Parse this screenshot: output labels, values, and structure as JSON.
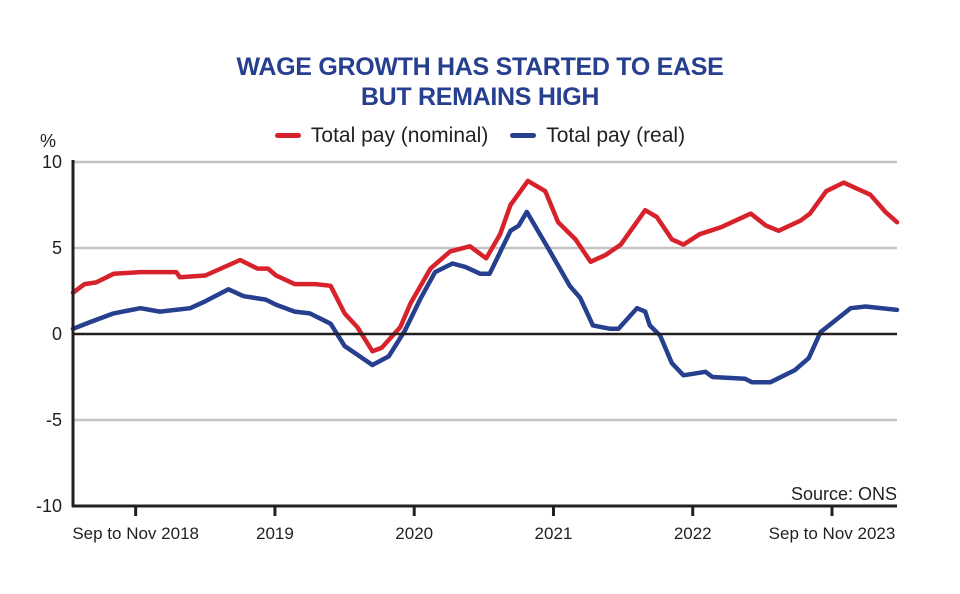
{
  "chart_data": {
    "type": "line",
    "title": "WAGE GROWTH HAS STARTED TO EASE",
    "subtitle": "BUT REMAINS HIGH",
    "ylabel": "%",
    "xlabel": "",
    "ylim": [
      -10,
      10
    ],
    "yticks": [
      10,
      5,
      0,
      -5,
      -10
    ],
    "ytick_labels": [
      "10",
      "5",
      "0",
      "-5",
      "-10"
    ],
    "x_unit": "months since start (Jun 2018 approx.)",
    "xlim": [
      0,
      71
    ],
    "xticks": [
      5.4,
      17.4,
      29.4,
      41.4,
      53.4,
      65.4
    ],
    "xtick_labels": [
      "Sep to Nov 2018",
      "2019",
      "2020",
      "2021",
      "2022",
      "Sep to Nov 2023"
    ],
    "grid": true,
    "legend_position": "top-center",
    "source": "Source: ONS",
    "colors": {
      "nominal": "#d7222c",
      "real": "#263f8f",
      "title": "#263f8f",
      "grid": "#c4c4c4"
    },
    "series": [
      {
        "name": "Total pay (nominal)",
        "color": "#d7222c",
        "points": [
          [
            0,
            2.4
          ],
          [
            1,
            2.9
          ],
          [
            2,
            3.0
          ],
          [
            3.5,
            3.5
          ],
          [
            5.8,
            3.6
          ],
          [
            8.9,
            3.6
          ],
          [
            9.2,
            3.3
          ],
          [
            11.4,
            3.4
          ],
          [
            14.4,
            4.3
          ],
          [
            15.9,
            3.8
          ],
          [
            16.8,
            3.8
          ],
          [
            17.5,
            3.4
          ],
          [
            19.1,
            2.9
          ],
          [
            20.9,
            2.9
          ],
          [
            22.2,
            2.8
          ],
          [
            23.4,
            1.2
          ],
          [
            24.5,
            0.4
          ],
          [
            25.8,
            -1.0
          ],
          [
            26.6,
            -0.8
          ],
          [
            28.2,
            0.4
          ],
          [
            29.1,
            1.8
          ],
          [
            30.8,
            3.8
          ],
          [
            32.5,
            4.8
          ],
          [
            34.2,
            5.1
          ],
          [
            35.6,
            4.4
          ],
          [
            36.8,
            5.8
          ],
          [
            37.7,
            7.5
          ],
          [
            39.2,
            8.9
          ],
          [
            40.7,
            8.3
          ],
          [
            41.8,
            6.5
          ],
          [
            43.3,
            5.5
          ],
          [
            44.6,
            4.2
          ],
          [
            45.9,
            4.6
          ],
          [
            47.2,
            5.2
          ],
          [
            49.3,
            7.2
          ],
          [
            50.3,
            6.8
          ],
          [
            51.6,
            5.5
          ],
          [
            52.6,
            5.2
          ],
          [
            54.0,
            5.8
          ],
          [
            55.8,
            6.2
          ],
          [
            58.4,
            7.0
          ],
          [
            59.7,
            6.3
          ],
          [
            60.8,
            6.0
          ],
          [
            62.7,
            6.6
          ],
          [
            63.5,
            7.0
          ],
          [
            64.9,
            8.3
          ],
          [
            66.4,
            8.8
          ],
          [
            68.7,
            8.1
          ],
          [
            70.0,
            7.1
          ],
          [
            71,
            6.5
          ]
        ]
      },
      {
        "name": "Total pay (real)",
        "color": "#263f8f",
        "points": [
          [
            0,
            0.3
          ],
          [
            1.5,
            0.7
          ],
          [
            3.5,
            1.2
          ],
          [
            5.8,
            1.5
          ],
          [
            7.5,
            1.3
          ],
          [
            10.1,
            1.5
          ],
          [
            11.4,
            1.9
          ],
          [
            13.4,
            2.6
          ],
          [
            14.7,
            2.2
          ],
          [
            16.6,
            2.0
          ],
          [
            17.5,
            1.7
          ],
          [
            19.1,
            1.3
          ],
          [
            20.4,
            1.2
          ],
          [
            22.2,
            0.6
          ],
          [
            23.4,
            -0.7
          ],
          [
            25.8,
            -1.8
          ],
          [
            27.2,
            -1.3
          ],
          [
            28.6,
            0.2
          ],
          [
            29.9,
            2.0
          ],
          [
            31.2,
            3.6
          ],
          [
            32.7,
            4.1
          ],
          [
            33.8,
            3.9
          ],
          [
            35.1,
            3.5
          ],
          [
            35.9,
            3.5
          ],
          [
            37.7,
            6.0
          ],
          [
            38.4,
            6.3
          ],
          [
            39.1,
            7.1
          ],
          [
            41.1,
            4.8
          ],
          [
            42.8,
            2.8
          ],
          [
            43.7,
            2.1
          ],
          [
            44.8,
            0.5
          ],
          [
            46.3,
            0.3
          ],
          [
            47.0,
            0.3
          ],
          [
            48.6,
            1.5
          ],
          [
            49.3,
            1.3
          ],
          [
            49.7,
            0.5
          ],
          [
            50.6,
            -0.1
          ],
          [
            51.6,
            -1.7
          ],
          [
            52.6,
            -2.4
          ],
          [
            54.5,
            -2.2
          ],
          [
            55.1,
            -2.5
          ],
          [
            57.9,
            -2.6
          ],
          [
            58.5,
            -2.8
          ],
          [
            60.1,
            -2.8
          ],
          [
            62.2,
            -2.1
          ],
          [
            63.4,
            -1.4
          ],
          [
            64.4,
            0.1
          ],
          [
            67.0,
            1.5
          ],
          [
            68.3,
            1.6
          ],
          [
            71,
            1.4
          ]
        ]
      }
    ]
  }
}
